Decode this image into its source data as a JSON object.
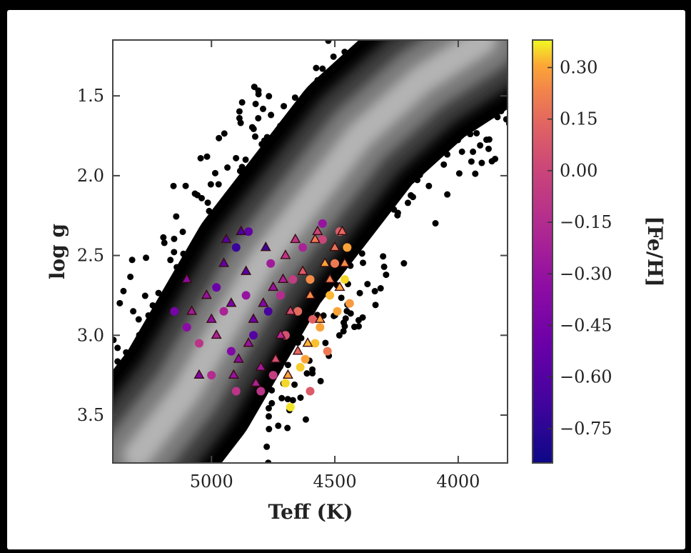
{
  "chart_data": {
    "type": "scatter",
    "title": "",
    "xlabel": "Teff (K)",
    "ylabel": "log g",
    "colorbar_label": "[Fe/H]",
    "x_axis_reversed": true,
    "y_axis_reversed": true,
    "xlim": [
      5400,
      3800
    ],
    "ylim": [
      1.15,
      3.8
    ],
    "x_ticks": [
      5000,
      4500,
      4000
    ],
    "x_tick_labels": [
      "5000",
      "4500",
      "4000"
    ],
    "y_ticks": [
      1.5,
      2.0,
      2.5,
      3.0,
      3.5
    ],
    "y_tick_labels": [
      "1.5",
      "2.0",
      "2.5",
      "3.0",
      "3.5"
    ],
    "colorbar_range": [
      -0.85,
      0.38
    ],
    "colorbar_ticks": [
      0.3,
      0.15,
      0.0,
      -0.15,
      -0.3,
      -0.45,
      -0.6,
      -0.75
    ],
    "colorbar_tick_labels": [
      "0.30",
      "0.15",
      "0.00",
      "−0.15",
      "−0.30",
      "−0.45",
      "−0.60",
      "−0.75"
    ],
    "colormap": "plasma",
    "background_density": {
      "type": "hexbin",
      "colors": [
        "#000000",
        "#cccccc"
      ],
      "ridge_line": [
        [
          5300,
          3.75
        ],
        [
          5100,
          3.35
        ],
        [
          4950,
          2.95
        ],
        [
          4800,
          2.55
        ],
        [
          4600,
          2.15
        ],
        [
          4400,
          1.75
        ],
        [
          4150,
          1.4
        ],
        [
          3900,
          1.15
        ]
      ]
    },
    "series": [
      {
        "marker": "circle",
        "points": [
          [
            5050,
            3.05,
            -0.1
          ],
          [
            5000,
            3.25,
            -0.15
          ],
          [
            4950,
            2.85,
            -0.2
          ],
          [
            4900,
            2.45,
            -0.7
          ],
          [
            4850,
            2.35,
            -0.55
          ],
          [
            4800,
            3.35,
            -0.1
          ],
          [
            4750,
            3.25,
            -0.05
          ],
          [
            4700,
            3.0,
            0.05
          ],
          [
            4650,
            2.85,
            0.15
          ],
          [
            4620,
            3.15,
            0.3
          ],
          [
            4600,
            2.65,
            0.25
          ],
          [
            4580,
            3.05,
            0.33
          ],
          [
            4560,
            2.95,
            0.3
          ],
          [
            4550,
            2.4,
            0.0
          ],
          [
            4520,
            2.75,
            0.32
          ],
          [
            4500,
            2.55,
            0.2
          ],
          [
            4480,
            2.35,
            0.1
          ],
          [
            4460,
            2.65,
            0.35
          ],
          [
            4450,
            2.45,
            0.3
          ],
          [
            4440,
            2.8,
            0.28
          ],
          [
            4700,
            3.3,
            0.35
          ],
          [
            4680,
            3.45,
            0.36
          ],
          [
            4640,
            3.2,
            0.34
          ],
          [
            4590,
            2.9,
            0.12
          ],
          [
            4860,
            2.75,
            -0.3
          ],
          [
            4920,
            3.1,
            -0.4
          ],
          [
            4980,
            2.7,
            -0.5
          ],
          [
            4760,
            2.55,
            -0.25
          ],
          [
            4720,
            2.75,
            -0.15
          ],
          [
            5100,
            2.95,
            -0.35
          ],
          [
            5150,
            2.85,
            -0.45
          ],
          [
            4830,
            3.0,
            -0.6
          ],
          [
            4770,
            2.85,
            -0.65
          ],
          [
            4670,
            2.65,
            -0.05
          ],
          [
            4630,
            2.45,
            -0.2
          ],
          [
            4550,
            2.3,
            -0.3
          ],
          [
            4490,
            2.85,
            0.3
          ],
          [
            4530,
            3.1,
            0.2
          ],
          [
            4600,
            3.35,
            0.1
          ],
          [
            4900,
            3.35,
            -0.1
          ]
        ]
      },
      {
        "marker": "triangle",
        "points": [
          [
            5100,
            2.65,
            -0.35
          ],
          [
            5080,
            2.85,
            -0.25
          ],
          [
            5050,
            3.25,
            -0.4
          ],
          [
            5020,
            2.75,
            -0.3
          ],
          [
            4980,
            3.0,
            -0.2
          ],
          [
            4950,
            2.55,
            -0.55
          ],
          [
            4920,
            2.8,
            -0.45
          ],
          [
            4890,
            3.15,
            -0.35
          ],
          [
            4860,
            2.6,
            -0.6
          ],
          [
            4830,
            2.9,
            -0.5
          ],
          [
            4800,
            3.2,
            -0.25
          ],
          [
            4780,
            2.45,
            -0.7
          ],
          [
            4750,
            2.7,
            -0.3
          ],
          [
            4720,
            3.0,
            -0.15
          ],
          [
            4700,
            2.5,
            -0.1
          ],
          [
            4680,
            2.85,
            0.05
          ],
          [
            4650,
            3.1,
            0.15
          ],
          [
            4630,
            2.6,
            0.1
          ],
          [
            4600,
            2.75,
            0.25
          ],
          [
            4580,
            2.4,
            0.2
          ],
          [
            4560,
            2.9,
            0.28
          ],
          [
            4540,
            2.55,
            0.3
          ],
          [
            4520,
            2.65,
            0.22
          ],
          [
            4500,
            2.45,
            0.18
          ],
          [
            4480,
            2.7,
            0.3
          ],
          [
            4470,
            2.35,
            0.15
          ],
          [
            4460,
            2.55,
            0.25
          ],
          [
            4740,
            3.15,
            0.05
          ],
          [
            4820,
            3.3,
            -0.2
          ],
          [
            4880,
            2.35,
            -0.65
          ],
          [
            4940,
            2.4,
            -0.6
          ],
          [
            5000,
            2.9,
            -0.35
          ],
          [
            4910,
            3.25,
            -0.3
          ],
          [
            4690,
            3.25,
            0.3
          ],
          [
            4610,
            3.05,
            0.32
          ],
          [
            4570,
            2.35,
            0.0
          ],
          [
            4660,
            2.4,
            -0.1
          ],
          [
            4790,
            2.8,
            -0.4
          ],
          [
            4850,
            3.05,
            -0.3
          ],
          [
            4710,
            2.65,
            -0.2
          ]
        ]
      }
    ]
  }
}
